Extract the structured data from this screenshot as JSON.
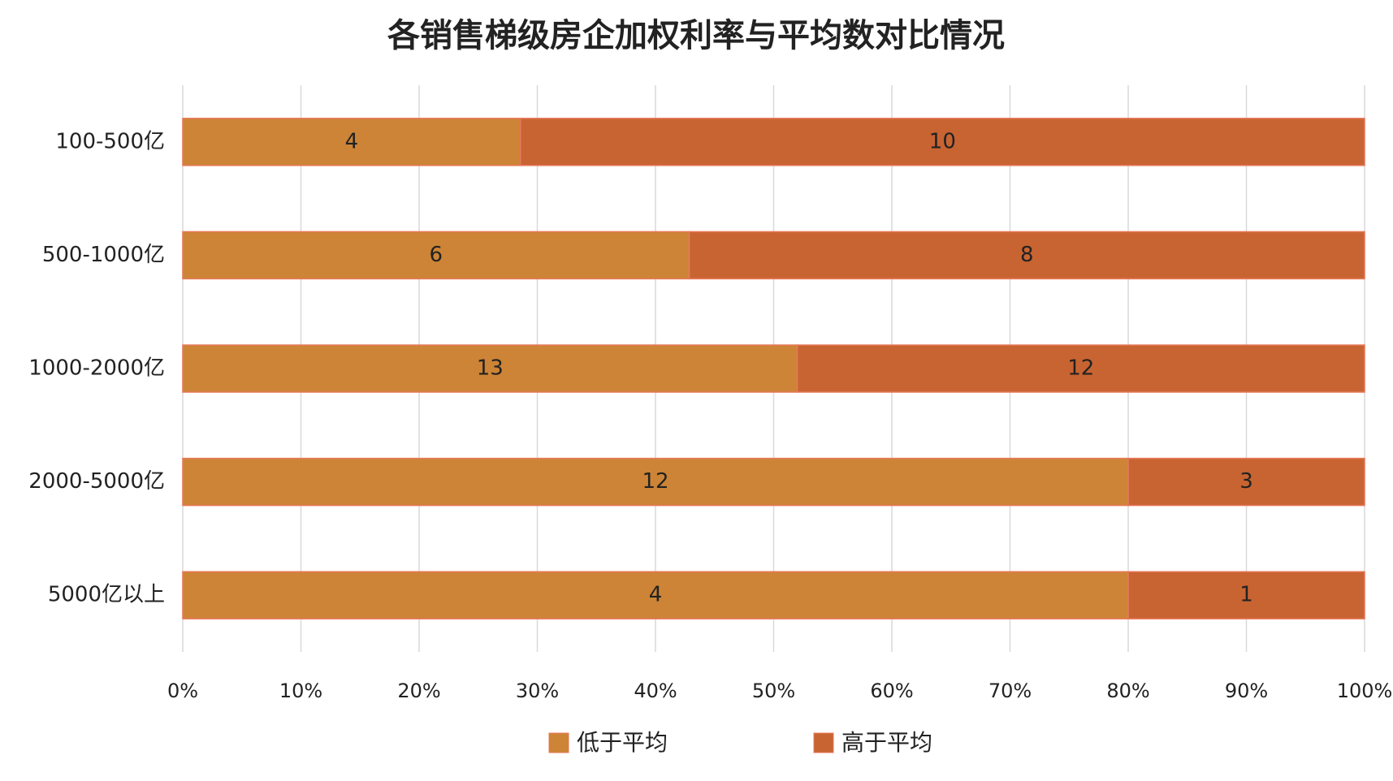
{
  "chart_data": {
    "type": "stacked-bar-100",
    "title": "各销售梯级房企加权利率与平均数对比情况",
    "categories": [
      "100-500亿",
      "500-1000亿",
      "1000-2000亿",
      "2000-5000亿",
      "5000亿以上"
    ],
    "series": [
      {
        "name": "低于平均",
        "color": "#cd8436",
        "values": [
          4,
          6,
          13,
          12,
          4
        ]
      },
      {
        "name": "高于平均",
        "color": "#c86432",
        "values": [
          10,
          8,
          12,
          3,
          1
        ]
      }
    ],
    "xlim": [
      0,
      100
    ],
    "xticks": [
      {
        "value": 0,
        "label": "0%"
      },
      {
        "value": 10,
        "label": "10%"
      },
      {
        "value": 20,
        "label": "20%"
      },
      {
        "value": 30,
        "label": "30%"
      },
      {
        "value": 40,
        "label": "40%"
      },
      {
        "value": 50,
        "label": "50%"
      },
      {
        "value": 60,
        "label": "60%"
      },
      {
        "value": 70,
        "label": "70%"
      },
      {
        "value": 80,
        "label": "80%"
      },
      {
        "value": 90,
        "label": "90%"
      },
      {
        "value": 100,
        "label": "100%"
      }
    ],
    "grid": true,
    "legend": "bottom"
  }
}
